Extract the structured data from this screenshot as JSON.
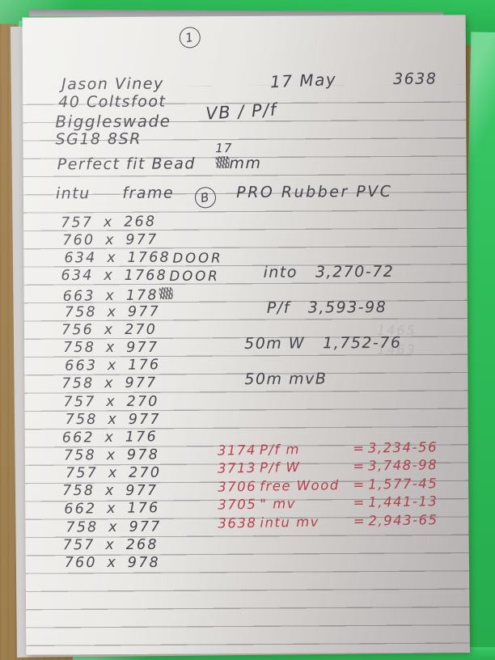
{
  "note": {
    "page_number": "1",
    "customer": {
      "name": "Jason Viney",
      "address1": "40 Coltsfoot",
      "address2": "Biggleswade",
      "postcode": "SG18 8SR"
    },
    "date": "17 May",
    "job_number": "3638",
    "product_code": "VB / P/f",
    "bead": {
      "text": "Perfect fit Bead",
      "crossed_out": "8",
      "corrected": "17",
      "unit": "mm"
    },
    "frame": {
      "word1": "intu",
      "word2": "frame",
      "circled_letter": "B",
      "word3": "PRO Rubber PVC"
    },
    "measurements": [
      {
        "size": "757 x 268"
      },
      {
        "size": "760 x 977"
      },
      {
        "size": "634 x 1768",
        "note": "DOOR"
      },
      {
        "size": "634 x 1768",
        "note": "DOOR"
      },
      {
        "size": "663 x 178",
        "scribble": true
      },
      {
        "size": "758 x 977"
      },
      {
        "size": "756 x 270"
      },
      {
        "size": "758 x 977"
      },
      {
        "size": "663 x 176"
      },
      {
        "size": "758 x 977"
      },
      {
        "size": "757 x 270"
      },
      {
        "size": "758 x 977"
      },
      {
        "size": "662 x 176"
      },
      {
        "size": "758 x 978"
      },
      {
        "size": "757 x 270"
      },
      {
        "size": "758 x 977"
      },
      {
        "size": "662 x 176"
      },
      {
        "size": "758 x 977"
      },
      {
        "size": "757 x 268"
      },
      {
        "size": "760 x 978"
      }
    ],
    "pricing_notes": [
      {
        "label": "into",
        "value": "3,270-72"
      },
      {
        "label": "P/f",
        "value": "3,593-98"
      },
      {
        "label": "50m W",
        "value": "1,752-76"
      },
      {
        "label": "50m mvB",
        "value": ""
      }
    ],
    "equals_sign": "=",
    "totals_red": [
      {
        "code": "3174",
        "item": "P/f m",
        "value": "3,234-56"
      },
      {
        "code": "3713",
        "item": "P/f W",
        "value": "3,748-98"
      },
      {
        "code": "3706",
        "item": "free Wood",
        "value": "1,577-45"
      },
      {
        "code": "3705",
        "item": "\"  mv",
        "value": "1,441-13"
      },
      {
        "code": "3638",
        "item": "intu mv",
        "value": "2,943-65"
      }
    ],
    "ghost_bleedthrough": [
      "1465",
      "1463"
    ],
    "colors": {
      "ink": "#45434c",
      "red_ink": "#c2414d",
      "folder_green": "#2fbd59",
      "desk_wood": "#8a6f3e",
      "paper": "#e9e7e4"
    }
  }
}
